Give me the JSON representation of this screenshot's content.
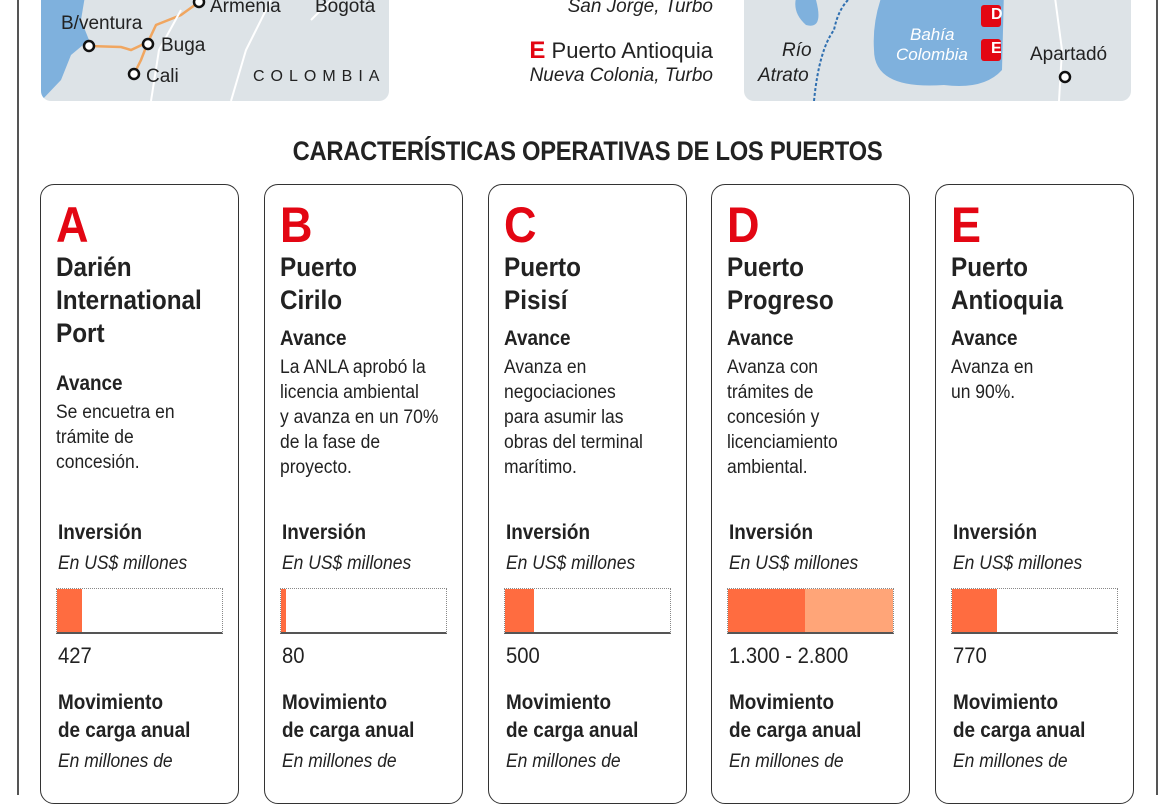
{
  "map_left": {
    "cities": [
      "Armenia",
      "Bogotá",
      "B/ventura",
      "Buga",
      "Cali"
    ],
    "country": "COLOMBIA"
  },
  "legend": {
    "d_location": "San Jorge, Turbo",
    "e_letter": "E",
    "e_name": "Puerto Antioquia",
    "e_location": "Nueva Colonia, Turbo"
  },
  "map_right": {
    "labels": [
      "Río",
      "Atrato",
      "Bahía",
      "Colombia",
      "Apartadó"
    ],
    "markers": [
      "D",
      "E"
    ]
  },
  "title": "CARACTERÍSTICAS OPERATIVAS DE LOS PUERTOS",
  "colors": {
    "accent_red": "#e30613",
    "bar_main": "#ff6c40",
    "bar_range": "#ffa578",
    "map_water": "#7fb1dd",
    "map_land": "#dde3e7"
  },
  "section_labels": {
    "avance": "Avance",
    "inversion": "Inversión",
    "inversion_unit": "En US$ millones",
    "carga_1": "Movimiento",
    "carga_2": "de carga anual",
    "carga_unit": "En millones de"
  },
  "investment_scale_max": 2800,
  "ports": [
    {
      "letter": "A",
      "name": [
        "Darién",
        "International",
        "Port"
      ],
      "avance": [
        "Se encuetra en",
        "trámite de",
        "concesión."
      ],
      "investment_label": "427",
      "investment_low": 427,
      "investment_high": 427
    },
    {
      "letter": "B",
      "name": [
        "Puerto",
        "Cirilo"
      ],
      "avance": [
        "La ANLA aprobó la",
        "licencia ambiental",
        "y avanza en un 70%",
        "de la fase de",
        "proyecto."
      ],
      "investment_label": "80",
      "investment_low": 80,
      "investment_high": 80
    },
    {
      "letter": "C",
      "name": [
        "Puerto",
        "Pisisí"
      ],
      "avance": [
        "Avanza en",
        "negociaciones",
        "para asumir las",
        "obras del terminal",
        "marítimo."
      ],
      "investment_label": "500",
      "investment_low": 500,
      "investment_high": 500
    },
    {
      "letter": "D",
      "name": [
        "Puerto",
        "Progreso"
      ],
      "avance": [
        "Avanza con",
        "trámites de",
        "concesión y",
        "licenciamiento",
        "ambiental."
      ],
      "investment_label": "1.300 - 2.800",
      "investment_low": 1300,
      "investment_high": 2800
    },
    {
      "letter": "E",
      "name": [
        "Puerto",
        "Antioquia"
      ],
      "avance": [
        "Avanza en",
        "un 90%."
      ],
      "investment_label": "770",
      "investment_low": 770,
      "investment_high": 770
    }
  ]
}
